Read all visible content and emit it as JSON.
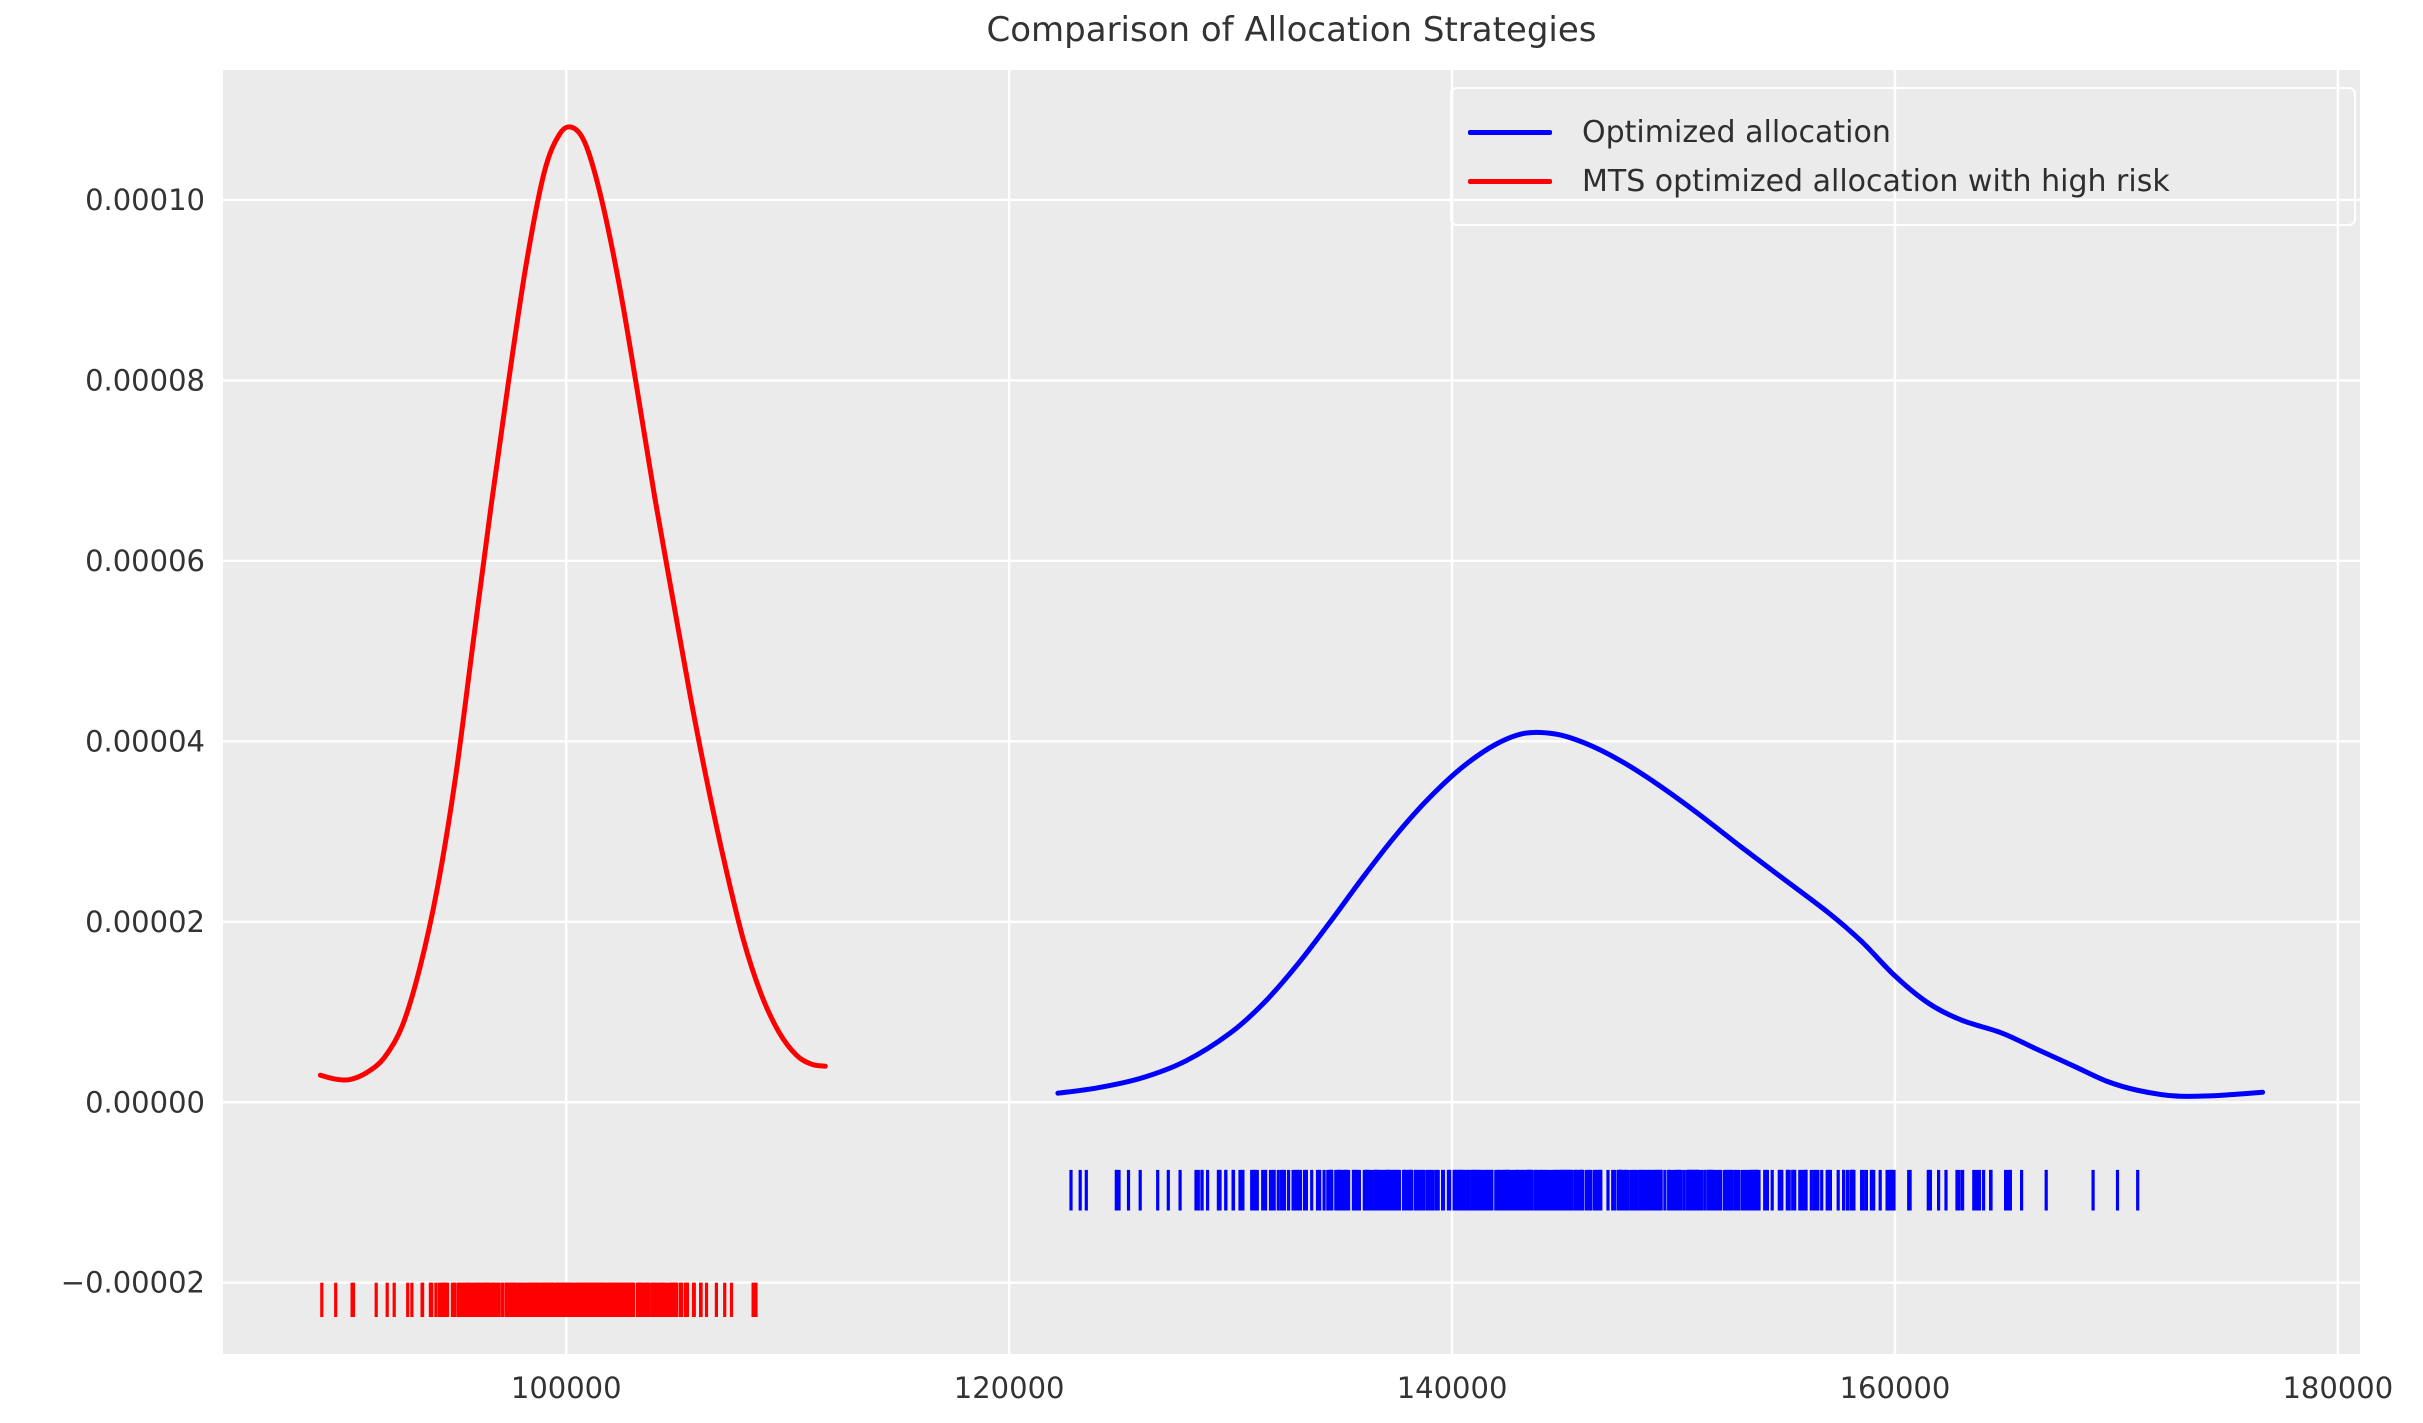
{
  "chart_data": {
    "type": "line",
    "subtype": "kde-with-rug",
    "title": "Comparison of Allocation Strategies",
    "background_color": "#ebebeb",
    "grid_color": "#ffffff",
    "text_color": "#333333",
    "grid": "on",
    "legend_position": "upper right",
    "x_axis": {
      "range": [
        84500,
        181000
      ],
      "ticks": [
        {
          "value": 100000,
          "label": "100000"
        },
        {
          "value": 120000,
          "label": "120000"
        },
        {
          "value": 140000,
          "label": "140000"
        },
        {
          "value": 160000,
          "label": "160000"
        },
        {
          "value": 180000,
          "label": "180000"
        }
      ]
    },
    "y_axis": {
      "range": [
        -2.79e-05,
        0.0001144
      ],
      "ticks": [
        {
          "value": 0.0001,
          "label": "0.00010"
        },
        {
          "value": 8e-05,
          "label": "0.00008"
        },
        {
          "value": 6e-05,
          "label": "0.00006"
        },
        {
          "value": 4e-05,
          "label": "0.00004"
        },
        {
          "value": 2e-05,
          "label": "0.00002"
        },
        {
          "value": 0.0,
          "label": "0.00000"
        },
        {
          "value": -2e-05,
          "label": "−0.00002"
        }
      ]
    },
    "legend": [
      {
        "label": "Optimized allocation",
        "color": "#0000ff"
      },
      {
        "label": "MTS optimized allocation with high risk",
        "color": "#ff0000"
      }
    ],
    "series": [
      {
        "name": "Optimized allocation",
        "color": "#0000ff",
        "points": [
          [
            122200,
            1e-06
          ],
          [
            124000,
            1.6e-06
          ],
          [
            126000,
            2.7e-06
          ],
          [
            128000,
            4.6e-06
          ],
          [
            130000,
            7.7e-06
          ],
          [
            131500,
            1.1e-05
          ],
          [
            133000,
            1.52e-05
          ],
          [
            134500,
            2e-05
          ],
          [
            136000,
            2.5e-05
          ],
          [
            137500,
            2.97e-05
          ],
          [
            139000,
            3.38e-05
          ],
          [
            140500,
            3.72e-05
          ],
          [
            142000,
            3.97e-05
          ],
          [
            143300,
            4.09e-05
          ],
          [
            144700,
            4.08e-05
          ],
          [
            146000,
            3.98e-05
          ],
          [
            147500,
            3.8e-05
          ],
          [
            149000,
            3.57e-05
          ],
          [
            151000,
            3.22e-05
          ],
          [
            153000,
            2.84e-05
          ],
          [
            155000,
            2.47e-05
          ],
          [
            157000,
            2.1e-05
          ],
          [
            158500,
            1.78e-05
          ],
          [
            160000,
            1.4e-05
          ],
          [
            161500,
            1.1e-05
          ],
          [
            163000,
            9.1e-06
          ],
          [
            164800,
            7.7e-06
          ],
          [
            166300,
            6e-06
          ],
          [
            168000,
            4.1e-06
          ],
          [
            169600,
            2.3e-06
          ],
          [
            171000,
            1.3e-06
          ],
          [
            172600,
            7e-07
          ],
          [
            174200,
            7e-07
          ],
          [
            175500,
            9e-07
          ],
          [
            176600,
            1.1e-06
          ]
        ]
      },
      {
        "name": "MTS optimized allocation with high risk",
        "color": "#ff0000",
        "points": [
          [
            88900,
            3e-06
          ],
          [
            89500,
            2.6e-06
          ],
          [
            90200,
            2.5e-06
          ],
          [
            91000,
            3.3e-06
          ],
          [
            91800,
            5e-06
          ],
          [
            92600,
            8.5e-06
          ],
          [
            93400,
            1.5e-05
          ],
          [
            94200,
            2.4e-05
          ],
          [
            95000,
            3.6e-05
          ],
          [
            95800,
            5.1e-05
          ],
          [
            96600,
            6.6e-05
          ],
          [
            97400,
            8e-05
          ],
          [
            98200,
            9.3e-05
          ],
          [
            99000,
            0.000103
          ],
          [
            99700,
            0.0001073
          ],
          [
            100300,
            0.000108
          ],
          [
            100900,
            0.000106
          ],
          [
            101600,
            0.0001
          ],
          [
            102400,
            9.05e-05
          ],
          [
            103200,
            7.9e-05
          ],
          [
            104000,
            6.7e-05
          ],
          [
            104800,
            5.6e-05
          ],
          [
            105600,
            4.5e-05
          ],
          [
            106400,
            3.5e-05
          ],
          [
            107200,
            2.6e-05
          ],
          [
            108000,
            1.8e-05
          ],
          [
            108800,
            1.2e-05
          ],
          [
            109600,
            7.8e-06
          ],
          [
            110400,
            5.2e-06
          ],
          [
            111100,
            4.2e-06
          ],
          [
            111700,
            4e-06
          ]
        ]
      }
    ],
    "rugs": [
      {
        "series": "Optimized allocation",
        "color": "#0000ff",
        "count": 450,
        "mean": 144000,
        "std": 9300,
        "clip": [
          122200,
          176650
        ],
        "seed": 11,
        "y_top": -7.5e-06,
        "y_bottom": -1.2e-05
      },
      {
        "series": "MTS optimized allocation with high risk",
        "color": "#ff0000",
        "count": 300,
        "mean": 100300,
        "std": 3700,
        "clip": [
          88900,
          111800
        ],
        "seed": 3,
        "y_top": -2e-05,
        "y_bottom": -2.38e-05
      }
    ]
  }
}
